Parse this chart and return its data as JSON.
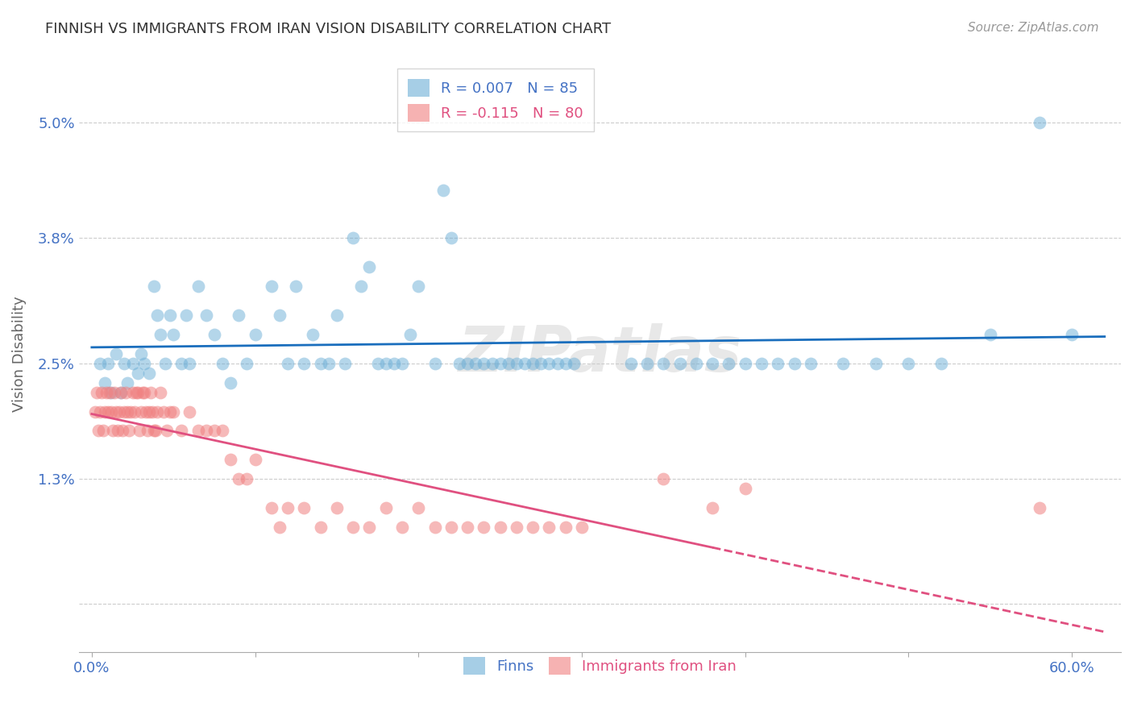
{
  "title": "FINNISH VS IMMIGRANTS FROM IRAN VISION DISABILITY CORRELATION CHART",
  "source": "Source: ZipAtlas.com",
  "ylabel": "Vision Disability",
  "watermark": "ZIPatlas",
  "finn_color": "#6baed6",
  "iran_color": "#f08080",
  "trend_blue": "#1a6ebd",
  "trend_pink": "#e05080",
  "background_color": "#ffffff",
  "grid_color": "#cccccc",
  "yticks": [
    0.0,
    0.013,
    0.025,
    0.038,
    0.05
  ],
  "ytick_labels": [
    "",
    "1.3%",
    "2.5%",
    "3.8%",
    "5.0%"
  ],
  "ylim": [
    -0.005,
    0.057
  ],
  "xlim": [
    -0.008,
    0.63
  ],
  "finn_scatter_x": [
    0.005,
    0.008,
    0.01,
    0.012,
    0.015,
    0.018,
    0.02,
    0.022,
    0.025,
    0.028,
    0.03,
    0.032,
    0.035,
    0.038,
    0.04,
    0.042,
    0.045,
    0.048,
    0.05,
    0.055,
    0.058,
    0.06,
    0.065,
    0.07,
    0.075,
    0.08,
    0.085,
    0.09,
    0.095,
    0.1,
    0.11,
    0.115,
    0.12,
    0.125,
    0.13,
    0.135,
    0.14,
    0.145,
    0.15,
    0.155,
    0.16,
    0.165,
    0.17,
    0.175,
    0.18,
    0.185,
    0.19,
    0.195,
    0.2,
    0.21,
    0.215,
    0.22,
    0.225,
    0.23,
    0.235,
    0.24,
    0.245,
    0.25,
    0.255,
    0.26,
    0.265,
    0.27,
    0.275,
    0.28,
    0.285,
    0.29,
    0.295,
    0.33,
    0.34,
    0.35,
    0.36,
    0.37,
    0.38,
    0.39,
    0.4,
    0.41,
    0.42,
    0.43,
    0.44,
    0.46,
    0.48,
    0.5,
    0.52,
    0.55,
    0.58,
    0.6
  ],
  "finn_scatter_y": [
    0.025,
    0.023,
    0.025,
    0.022,
    0.026,
    0.022,
    0.025,
    0.023,
    0.025,
    0.024,
    0.026,
    0.025,
    0.024,
    0.033,
    0.03,
    0.028,
    0.025,
    0.03,
    0.028,
    0.025,
    0.03,
    0.025,
    0.033,
    0.03,
    0.028,
    0.025,
    0.023,
    0.03,
    0.025,
    0.028,
    0.033,
    0.03,
    0.025,
    0.033,
    0.025,
    0.028,
    0.025,
    0.025,
    0.03,
    0.025,
    0.038,
    0.033,
    0.035,
    0.025,
    0.025,
    0.025,
    0.025,
    0.028,
    0.033,
    0.025,
    0.043,
    0.038,
    0.025,
    0.025,
    0.025,
    0.025,
    0.025,
    0.025,
    0.025,
    0.025,
    0.025,
    0.025,
    0.025,
    0.025,
    0.025,
    0.025,
    0.025,
    0.025,
    0.025,
    0.025,
    0.025,
    0.025,
    0.025,
    0.025,
    0.025,
    0.025,
    0.025,
    0.025,
    0.025,
    0.025,
    0.025,
    0.025,
    0.025,
    0.028,
    0.05,
    0.028
  ],
  "iran_scatter_x": [
    0.002,
    0.003,
    0.004,
    0.005,
    0.006,
    0.007,
    0.008,
    0.009,
    0.01,
    0.011,
    0.012,
    0.013,
    0.014,
    0.015,
    0.016,
    0.017,
    0.018,
    0.019,
    0.02,
    0.021,
    0.022,
    0.023,
    0.024,
    0.025,
    0.026,
    0.027,
    0.028,
    0.029,
    0.03,
    0.031,
    0.032,
    0.033,
    0.034,
    0.035,
    0.036,
    0.037,
    0.038,
    0.039,
    0.04,
    0.042,
    0.044,
    0.046,
    0.048,
    0.05,
    0.055,
    0.06,
    0.065,
    0.07,
    0.075,
    0.08,
    0.085,
    0.09,
    0.095,
    0.1,
    0.11,
    0.115,
    0.12,
    0.13,
    0.14,
    0.15,
    0.16,
    0.17,
    0.18,
    0.19,
    0.2,
    0.21,
    0.22,
    0.23,
    0.24,
    0.25,
    0.26,
    0.27,
    0.28,
    0.29,
    0.3,
    0.35,
    0.38,
    0.4,
    0.58
  ],
  "iran_scatter_y": [
    0.02,
    0.022,
    0.018,
    0.02,
    0.022,
    0.018,
    0.02,
    0.022,
    0.02,
    0.022,
    0.02,
    0.018,
    0.022,
    0.02,
    0.018,
    0.02,
    0.022,
    0.018,
    0.02,
    0.022,
    0.02,
    0.018,
    0.02,
    0.022,
    0.02,
    0.022,
    0.022,
    0.018,
    0.02,
    0.022,
    0.022,
    0.02,
    0.018,
    0.02,
    0.022,
    0.02,
    0.018,
    0.018,
    0.02,
    0.022,
    0.02,
    0.018,
    0.02,
    0.02,
    0.018,
    0.02,
    0.018,
    0.018,
    0.018,
    0.018,
    0.015,
    0.013,
    0.013,
    0.015,
    0.01,
    0.008,
    0.01,
    0.01,
    0.008,
    0.01,
    0.008,
    0.008,
    0.01,
    0.008,
    0.01,
    0.008,
    0.008,
    0.008,
    0.008,
    0.008,
    0.008,
    0.008,
    0.008,
    0.008,
    0.008,
    0.013,
    0.01,
    0.012,
    0.01
  ]
}
